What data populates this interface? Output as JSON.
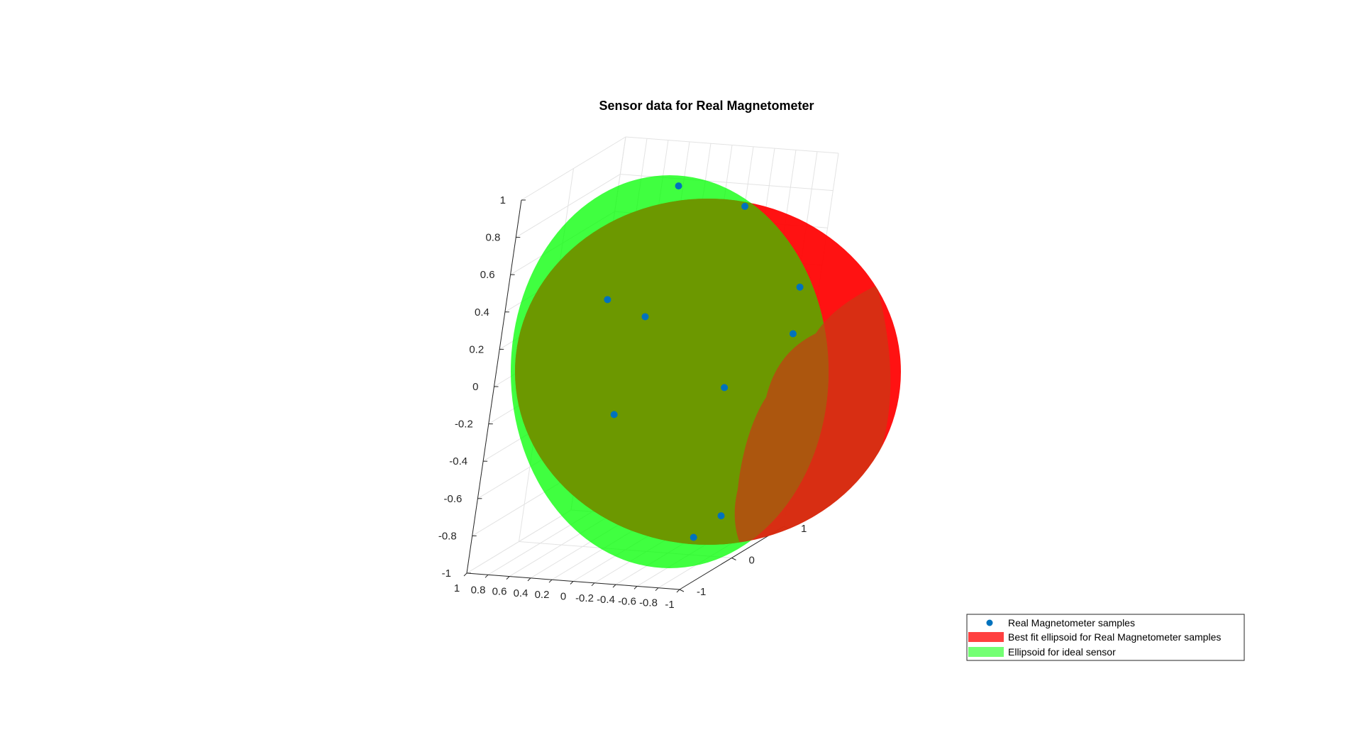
{
  "chart_data": {
    "type": "scatter",
    "subtype": "3d-scatter-with-ellipsoid-surfaces",
    "title": "Sensor data for Real Magnetometer",
    "view": "3d-perspective",
    "grid": true,
    "legend_placement": "bottom-right-outside",
    "axes": {
      "x": {
        "label": "",
        "range": [
          -1,
          1
        ],
        "ticks": [
          "1",
          "0.8",
          "0.6",
          "0.4",
          "0.2",
          "0",
          "-0.2",
          "-0.4",
          "-0.6",
          "-0.8",
          "-1"
        ]
      },
      "y": {
        "label": "",
        "range": [
          -1,
          1
        ],
        "ticks": [
          "1",
          "0",
          "-1"
        ]
      },
      "z": {
        "label": "",
        "range": [
          -1,
          1
        ],
        "ticks": [
          "1",
          "0.8",
          "0.6",
          "0.4",
          "0.2",
          "0",
          "-0.2",
          "-0.4",
          "-0.6",
          "-0.8",
          "-1"
        ]
      }
    },
    "series": [
      {
        "name": "Real Magnetometer samples",
        "kind": "points",
        "color": "#0072bd",
        "points": [
          {
            "x": 0.0,
            "y": 0.0,
            "z": 0.95
          },
          {
            "x": -0.6,
            "y": 0.1,
            "z": 0.85
          },
          {
            "x": 0.0,
            "y": -0.3,
            "z": 0.3
          },
          {
            "x": 0.2,
            "y": -0.2,
            "z": -0.25
          },
          {
            "x": -0.7,
            "y": 0.0,
            "z": -0.1
          },
          {
            "x": -1.0,
            "y": 0.6,
            "z": 0.35
          },
          {
            "x": -1.0,
            "y": 0.6,
            "z": 0.1
          },
          {
            "x": -0.75,
            "y": -0.3,
            "z": -0.85
          },
          {
            "x": -0.8,
            "y": 0.1,
            "z": -0.8
          },
          {
            "x": 0.55,
            "y": 0.1,
            "z": 0.3
          }
        ]
      },
      {
        "name": "Best fit ellipsoid for Real Magnetometer samples",
        "kind": "surface",
        "color": "#ff0000",
        "center": {
          "x": -0.15,
          "y": 0.05,
          "z": 0.0
        },
        "radii": {
          "x": 1.0,
          "y": 1.0,
          "z": 0.95
        }
      },
      {
        "name": "Ellipsoid for ideal sensor",
        "kind": "surface",
        "color": "#00ff00",
        "center": {
          "x": 0.0,
          "y": 0.0,
          "z": 0.0
        },
        "radii": {
          "x": 1.0,
          "y": 1.0,
          "z": 1.0
        }
      }
    ]
  },
  "colors": {
    "sample_marker": "#0072bd",
    "fit_surface": "#ff0000",
    "ideal_surface": "#00ff00",
    "overlap": "#6f9600",
    "grid": "#e3e3e3",
    "axis": "#262626"
  }
}
